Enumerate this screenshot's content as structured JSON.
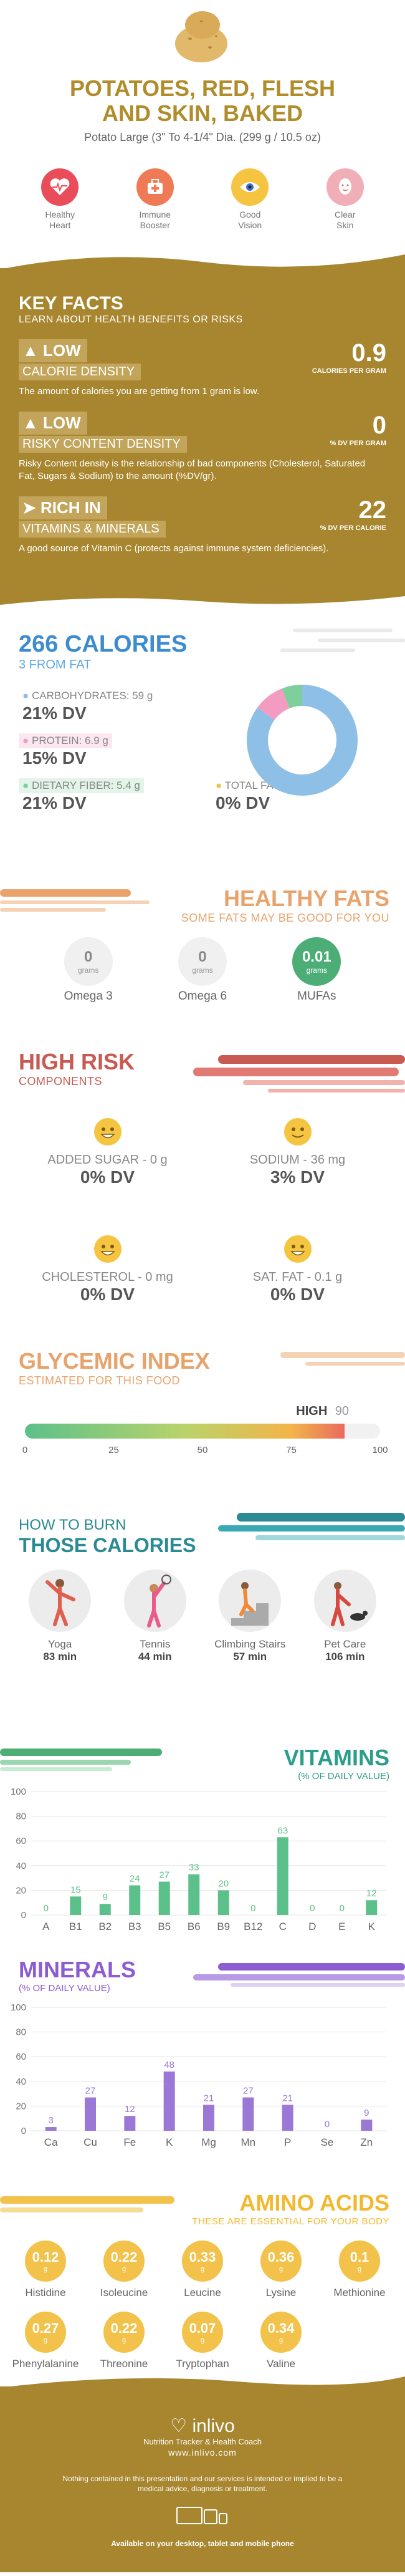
{
  "colors": {
    "gold": "#a8862f",
    "blue": "#3e8cd0",
    "orange": "#e8a36c",
    "red": "#c95a52",
    "teal": "#2b9e8a",
    "green": "#4cad76",
    "purple": "#8d5bd2",
    "amber": "#f2c24a"
  },
  "header": {
    "title_line1": "POTATOES, RED, FLESH",
    "title_line2": "AND SKIN, BAKED",
    "subtitle": "Potato Large (3\" To 4-1/4\" Dia. (299 g / 10.5 oz)"
  },
  "benefits": [
    {
      "icon": "heart-icon",
      "line1": "Healthy",
      "line2": "Heart",
      "color": "#ea4d5a"
    },
    {
      "icon": "immune-icon",
      "line1": "Immune",
      "line2": "Booster",
      "color": "#f07a56"
    },
    {
      "icon": "eye-icon",
      "line1": "Good",
      "line2": "Vision",
      "color": "#f5c542"
    },
    {
      "icon": "skin-icon",
      "line1": "Clear",
      "line2": "Skin",
      "color": "#f0aeb6"
    }
  ],
  "key_facts": {
    "title": "KEY FACTS",
    "subtitle": "LEARN ABOUT HEALTH BENEFITS OR RISKS",
    "facts": [
      {
        "level": "LOW",
        "label": "CALORIE DENSITY",
        "value": "0.9",
        "unit": "CALORIES PER GRAM",
        "desc": "The amount of calories you are getting from 1 gram is low."
      },
      {
        "level": "LOW",
        "label": "RISKY CONTENT DENSITY",
        "value": "0",
        "unit": "% DV PER GRAM",
        "desc": "Risky Content density is the relationship of bad components (Cholesterol, Saturated Fat, Sugars & Sodium) to the amount (%DV/gr)."
      },
      {
        "level": "RICH  IN",
        "label": "VITAMINS & MINERALS",
        "value": "22",
        "unit": "% DV PER CALORIE",
        "desc": "A good source of Vitamin C (protects against immune system deficiencies)."
      }
    ]
  },
  "calories": {
    "title": "266 CALORIES",
    "subtitle": "3 FROM FAT",
    "macros": [
      {
        "label": "CARBOHYDRATES: 59 g",
        "value": "21% DV",
        "color": "#8ebfe6"
      },
      {
        "label": "PROTEIN: 6.9 g",
        "value": "15% DV",
        "color": "#f39bc1"
      },
      {
        "label": "DIETARY FIBER: 5.4 g",
        "value": "21% DV",
        "color": "#7fcf9c"
      },
      {
        "label": "TOTAL FAT: 0.4 g",
        "value": "0% DV",
        "color": "#f2c24a"
      }
    ],
    "donut": [
      {
        "value": 85,
        "color": "#8ebfe6"
      },
      {
        "value": 9,
        "color": "#f39bc1"
      },
      {
        "value": 6,
        "color": "#7fcf9c"
      }
    ]
  },
  "healthy_fats": {
    "title": "HEALTHY FATS",
    "subtitle": "SOME FATS MAY BE GOOD FOR YOU",
    "items": [
      {
        "value": "0",
        "unit": "grams",
        "label": "Omega 3",
        "active": false
      },
      {
        "value": "0",
        "unit": "grams",
        "label": "Omega 6",
        "active": false
      },
      {
        "value": "0.01",
        "unit": "grams",
        "label": "MUFAs",
        "active": true
      }
    ]
  },
  "high_risk": {
    "title": "HIGH RISK",
    "subtitle": "COMPONENTS",
    "items": [
      {
        "label": "ADDED SUGAR - 0 g",
        "value": "0% DV"
      },
      {
        "label": "SODIUM - 36 mg",
        "value": "3% DV"
      },
      {
        "label": "CHOLESTEROL - 0 mg",
        "value": "0% DV"
      },
      {
        "label": "SAT. FAT - 0.1 g",
        "value": "0% DV"
      }
    ]
  },
  "glycemic": {
    "title": "GLYCEMIC INDEX",
    "subtitle": "ESTIMATED FOR THIS FOOD",
    "level": "HIGH",
    "value": "90",
    "ticks": [
      "0",
      "25",
      "50",
      "75",
      "100"
    ]
  },
  "burn": {
    "title_line1": "HOW TO BURN",
    "title_line2": "THOSE CALORIES",
    "activities": [
      {
        "label": "Yoga",
        "value": "83 min",
        "icon": "yoga-icon"
      },
      {
        "label": "Tennis",
        "value": "44 min",
        "icon": "tennis-icon"
      },
      {
        "label": "Climbing Stairs",
        "value": "57 min",
        "icon": "stairs-icon"
      },
      {
        "label": "Pet Care",
        "value": "106 min",
        "icon": "pet-care-icon"
      }
    ]
  },
  "vitamins": {
    "title": "VITAMINS",
    "subtitle": "(% OF DAILY VALUE)"
  },
  "minerals": {
    "title": "MINERALS",
    "subtitle": "(% OF DAILY VALUE)"
  },
  "chart_data": [
    {
      "type": "bar",
      "categories": [
        "A",
        "B1",
        "B2",
        "B3",
        "B5",
        "B6",
        "B9",
        "B12",
        "C",
        "D",
        "E",
        "K"
      ],
      "values": [
        0,
        15,
        9,
        24,
        27,
        33,
        20,
        0,
        63,
        0,
        0,
        12
      ],
      "ylim": [
        0,
        100
      ],
      "yticks": [
        0,
        20,
        40,
        60,
        80,
        100
      ],
      "color": "#5cc08a"
    },
    {
      "type": "bar",
      "categories": [
        "Ca",
        "Cu",
        "Fe",
        "K",
        "Mg",
        "Mn",
        "P",
        "Se",
        "Zn"
      ],
      "values": [
        3,
        27,
        12,
        48,
        21,
        27,
        21,
        0,
        9
      ],
      "ylim": [
        0,
        100
      ],
      "yticks": [
        0,
        20,
        40,
        60,
        80,
        100
      ],
      "color": "#9b78d6"
    }
  ],
  "amino_acids": {
    "title": "AMINO ACIDS",
    "subtitle": "THESE ARE ESSENTIAL FOR YOUR BODY",
    "unit": "g",
    "items": [
      {
        "value": "0.12",
        "label": "Histidine"
      },
      {
        "value": "0.22",
        "label": "Isoleucine"
      },
      {
        "value": "0.33",
        "label": "Leucine"
      },
      {
        "value": "0.36",
        "label": "Lysine"
      },
      {
        "value": "0.1",
        "label": "Methionine"
      },
      {
        "value": "0.27",
        "label": "Phenylalanine"
      },
      {
        "value": "0.22",
        "label": "Threonine"
      },
      {
        "value": "0.07",
        "label": "Tryptophan"
      },
      {
        "value": "0.34",
        "label": "Valine"
      }
    ]
  },
  "footer": {
    "brand": "inlivo",
    "tagline": "Nutrition Tracker & Health Coach",
    "url": "www.inlivo.com",
    "disclaimer": "Nothing contained in this presentation and our services is intended or implied to be a medical advice, diagnosis or treatment.",
    "available": "Available on your desktop, tablet and mobile phone"
  }
}
